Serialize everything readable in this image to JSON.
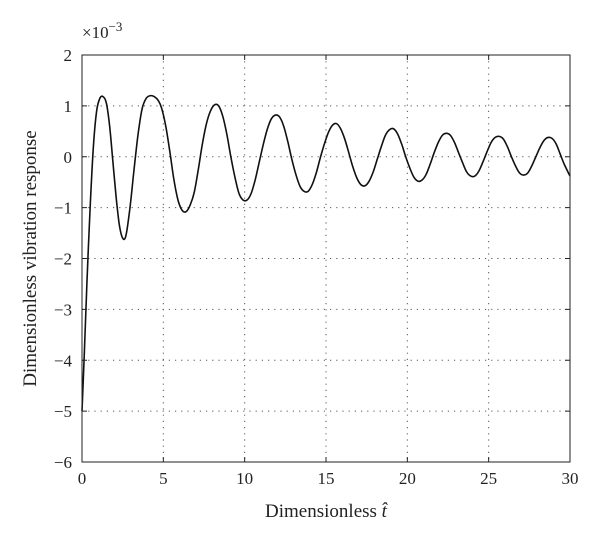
{
  "chart_data": {
    "type": "line",
    "xlabel": "Dimensionless",
    "xlabel_symbol": "t̂",
    "ylabel": "Dimensionless vibration response",
    "y_multiplier": "×10",
    "y_multiplier_exp": "−3",
    "xlim": [
      0,
      30
    ],
    "ylim": [
      -6,
      2
    ],
    "x_ticks": [
      0,
      5,
      10,
      15,
      20,
      25,
      30
    ],
    "x_tick_labels": [
      "0",
      "5",
      "10",
      "15",
      "20",
      "25",
      "30"
    ],
    "y_ticks": [
      -6,
      -5,
      -4,
      -3,
      -2,
      -1,
      0,
      1,
      2
    ],
    "y_tick_labels": [
      "−6",
      "−5",
      "−4",
      "−3",
      "−2",
      "−1",
      "0",
      "1",
      "2"
    ],
    "grid": true,
    "series": [
      {
        "x": [
          0,
          0.15,
          0.3,
          0.5,
          0.7,
          0.9,
          1.1,
          1.3,
          1.5,
          1.7,
          1.9,
          2.1,
          2.3,
          2.5,
          2.7,
          2.95,
          3.2,
          3.45,
          3.7,
          3.95,
          4.2,
          4.45,
          4.7,
          4.9,
          5.15,
          5.4,
          5.65,
          5.9,
          6.15,
          6.4,
          6.65,
          6.9,
          7.15,
          7.4,
          7.65,
          7.9,
          8.15,
          8.4,
          8.65,
          8.9,
          9.15,
          9.4,
          9.65,
          9.9,
          10.15,
          10.4,
          10.65,
          10.9,
          11.15,
          11.4,
          11.65,
          11.9,
          12.15,
          12.4,
          12.65,
          12.9,
          13.15,
          13.4,
          13.65,
          13.9,
          14.15,
          14.4,
          14.65,
          14.9,
          15.15,
          15.4,
          15.65,
          15.9,
          16.15,
          16.4,
          16.65,
          16.9,
          17.15,
          17.4,
          17.65,
          17.9,
          18.15,
          18.4,
          18.65,
          18.9,
          19.15,
          19.4,
          19.65,
          19.9,
          20.15,
          20.4,
          20.65,
          20.9,
          21.15,
          21.4,
          21.65,
          21.9,
          22.15,
          22.4,
          22.65,
          22.9,
          23.15,
          23.4,
          23.65,
          23.9,
          24.15,
          24.4,
          24.65,
          24.9,
          25.15,
          25.4,
          25.65,
          25.9,
          26.15,
          26.4,
          26.65,
          26.9,
          27.15,
          27.4,
          27.65,
          27.9,
          28.15,
          28.4,
          28.65,
          28.9,
          29.15,
          29.4,
          29.65,
          30.0
        ],
        "y": [
          -5.0,
          -3.8,
          -2.5,
          -1.0,
          0.2,
          0.9,
          1.15,
          1.18,
          1.05,
          0.6,
          -0.1,
          -0.8,
          -1.35,
          -1.6,
          -1.55,
          -1.0,
          -0.25,
          0.45,
          0.95,
          1.15,
          1.2,
          1.18,
          1.1,
          0.95,
          0.6,
          0.1,
          -0.45,
          -0.85,
          -1.05,
          -1.08,
          -0.95,
          -0.7,
          -0.25,
          0.25,
          0.65,
          0.9,
          1.02,
          1.0,
          0.8,
          0.45,
          0.0,
          -0.4,
          -0.72,
          -0.85,
          -0.85,
          -0.72,
          -0.45,
          -0.1,
          0.25,
          0.55,
          0.75,
          0.82,
          0.78,
          0.6,
          0.3,
          -0.05,
          -0.35,
          -0.58,
          -0.68,
          -0.68,
          -0.55,
          -0.32,
          -0.02,
          0.25,
          0.48,
          0.62,
          0.65,
          0.55,
          0.35,
          0.08,
          -0.2,
          -0.42,
          -0.55,
          -0.57,
          -0.48,
          -0.3,
          -0.05,
          0.2,
          0.42,
          0.53,
          0.55,
          0.45,
          0.25,
          0.0,
          -0.22,
          -0.4,
          -0.48,
          -0.46,
          -0.35,
          -0.15,
          0.08,
          0.28,
          0.42,
          0.46,
          0.42,
          0.28,
          0.08,
          -0.12,
          -0.3,
          -0.38,
          -0.38,
          -0.28,
          -0.1,
          0.1,
          0.28,
          0.38,
          0.4,
          0.35,
          0.2,
          0.0,
          -0.18,
          -0.32,
          -0.36,
          -0.32,
          -0.18,
          0.0,
          0.18,
          0.32,
          0.38,
          0.36,
          0.25,
          0.05,
          -0.15,
          -0.38
        ]
      }
    ]
  }
}
